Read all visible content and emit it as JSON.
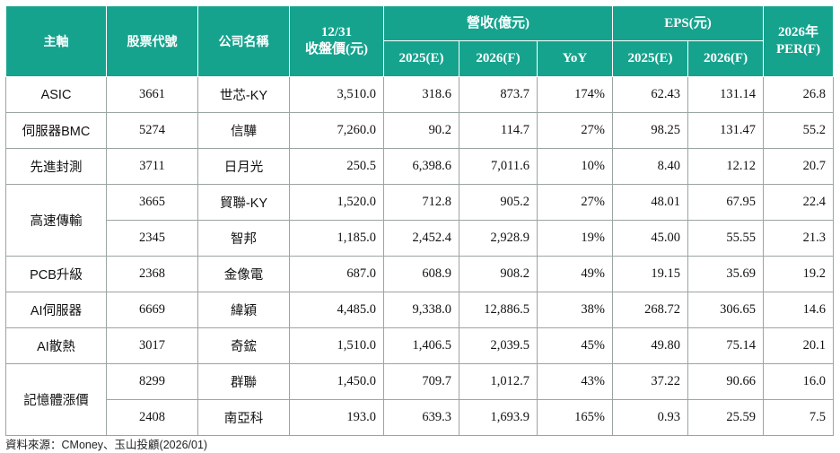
{
  "headers": {
    "theme": "主軸",
    "code": "股票代號",
    "company": "公司名稱",
    "close_line1": "12/31",
    "close_line2": "收盤價(元)",
    "revenue": "營收(億元)",
    "eps": "EPS(元)",
    "per_line1": "2026年",
    "per_line2": "PER(F)",
    "rev_2025": "2025(E)",
    "rev_2026": "2026(F)",
    "rev_yoy": "YoY",
    "eps_2025": "2025(E)",
    "eps_2026": "2026(F)"
  },
  "groups": [
    {
      "theme": "ASIC",
      "rows": [
        {
          "code": "3661",
          "company": "世芯-KY",
          "close": "3,510.0",
          "rev2025": "318.6",
          "rev2026": "873.7",
          "yoy": "174%",
          "eps2025": "62.43",
          "eps2026": "131.14",
          "per": "26.8"
        }
      ]
    },
    {
      "theme": "伺服器BMC",
      "rows": [
        {
          "code": "5274",
          "company": "信驊",
          "close": "7,260.0",
          "rev2025": "90.2",
          "rev2026": "114.7",
          "yoy": "27%",
          "eps2025": "98.25",
          "eps2026": "131.47",
          "per": "55.2"
        }
      ]
    },
    {
      "theme": "先進封測",
      "rows": [
        {
          "code": "3711",
          "company": "日月光",
          "close": "250.5",
          "rev2025": "6,398.6",
          "rev2026": "7,011.6",
          "yoy": "10%",
          "eps2025": "8.40",
          "eps2026": "12.12",
          "per": "20.7"
        }
      ]
    },
    {
      "theme": "高速傳輸",
      "rows": [
        {
          "code": "3665",
          "company": "貿聯-KY",
          "close": "1,520.0",
          "rev2025": "712.8",
          "rev2026": "905.2",
          "yoy": "27%",
          "eps2025": "48.01",
          "eps2026": "67.95",
          "per": "22.4"
        },
        {
          "code": "2345",
          "company": "智邦",
          "close": "1,185.0",
          "rev2025": "2,452.4",
          "rev2026": "2,928.9",
          "yoy": "19%",
          "eps2025": "45.00",
          "eps2026": "55.55",
          "per": "21.3"
        }
      ]
    },
    {
      "theme": "PCB升級",
      "rows": [
        {
          "code": "2368",
          "company": "金像電",
          "close": "687.0",
          "rev2025": "608.9",
          "rev2026": "908.2",
          "yoy": "49%",
          "eps2025": "19.15",
          "eps2026": "35.69",
          "per": "19.2"
        }
      ]
    },
    {
      "theme": "AI伺服器",
      "rows": [
        {
          "code": "6669",
          "company": "緯穎",
          "close": "4,485.0",
          "rev2025": "9,338.0",
          "rev2026": "12,886.5",
          "yoy": "38%",
          "eps2025": "268.72",
          "eps2026": "306.65",
          "per": "14.6"
        }
      ]
    },
    {
      "theme": "AI散熱",
      "rows": [
        {
          "code": "3017",
          "company": "奇鋐",
          "close": "1,510.0",
          "rev2025": "1,406.5",
          "rev2026": "2,039.5",
          "yoy": "45%",
          "eps2025": "49.80",
          "eps2026": "75.14",
          "per": "20.1"
        }
      ]
    },
    {
      "theme": "記憶體漲價",
      "rows": [
        {
          "code": "8299",
          "company": "群聯",
          "close": "1,450.0",
          "rev2025": "709.7",
          "rev2026": "1,012.7",
          "yoy": "43%",
          "eps2025": "37.22",
          "eps2026": "90.66",
          "per": "16.0"
        },
        {
          "code": "2408",
          "company": "南亞科",
          "close": "193.0",
          "rev2025": "639.3",
          "rev2026": "1,693.9",
          "yoy": "165%",
          "eps2025": "0.93",
          "eps2026": "25.59",
          "per": "7.5"
        }
      ]
    }
  ],
  "source": "資料來源：CMoney、玉山投顧(2026/01)",
  "colors": {
    "header_bg": "#16a38e",
    "header_text": "#ffffff",
    "grid": "#9aa5a3"
  }
}
